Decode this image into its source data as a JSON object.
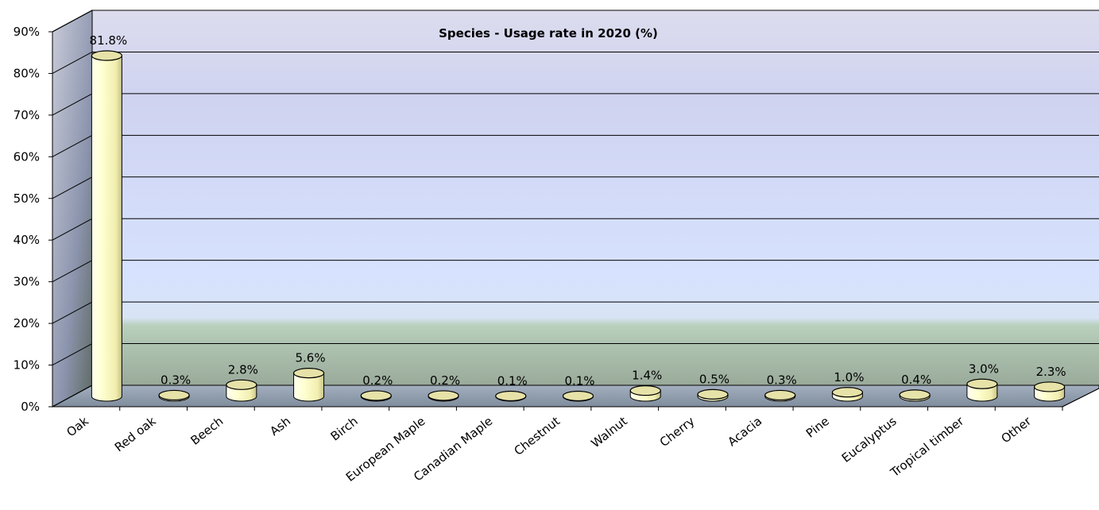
{
  "chart_data": {
    "type": "bar",
    "style": "3d-cylinder",
    "title": "Species - Usage rate in 2020 (%)",
    "xlabel": "",
    "ylabel": "",
    "categories": [
      "Oak",
      "Red oak",
      "Beech",
      "Ash",
      "Birch",
      "European Maple",
      "Canadian Maple",
      "Chestnut",
      "Walnut",
      "Cherry",
      "Acacia",
      "Pine",
      "Eucalyptus",
      "Tropical timber",
      "Other"
    ],
    "values": [
      81.8,
      0.3,
      2.8,
      5.6,
      0.2,
      0.2,
      0.1,
      0.1,
      1.4,
      0.5,
      0.3,
      1.0,
      0.4,
      3.0,
      2.3
    ],
    "value_labels": [
      "81.8%",
      "0.3%",
      "2.8%",
      "5.6%",
      "0.2%",
      "0.2%",
      "0.1%",
      "0.1%",
      "1.4%",
      "0.5%",
      "0.3%",
      "1.0%",
      "0.4%",
      "3.0%",
      "2.3%"
    ],
    "ylim": [
      0,
      90
    ],
    "yticks": [
      0,
      10,
      20,
      30,
      40,
      50,
      60,
      70,
      80,
      90
    ],
    "ytick_labels": [
      "0%",
      "10%",
      "20%",
      "30%",
      "40%",
      "50%",
      "60%",
      "70%",
      "80%",
      "90%"
    ],
    "grid": true,
    "legend": "none",
    "colors": {
      "bar_fill": "#ffffcc",
      "bar_top": "#e4e0a0",
      "bar_stroke": "#000000",
      "wall_top": "#dcdcee",
      "wall_mid": "#d4e0ff",
      "wall_low": "#bcd4c0",
      "floor": "#8e9cae",
      "side_wall": "#8f98b0"
    }
  }
}
